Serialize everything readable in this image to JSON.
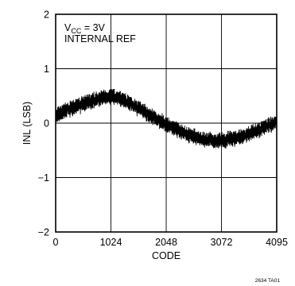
{
  "chart_data": {
    "type": "line",
    "title": "",
    "xlabel": "CODE",
    "ylabel": "INL (LSB)",
    "xlim": [
      0,
      4095
    ],
    "ylim": [
      -2,
      2
    ],
    "x_ticks": [
      0,
      1024,
      2048,
      3072,
      4095
    ],
    "x_tick_labels": [
      "0",
      "1024",
      "2048",
      "3072",
      "4095"
    ],
    "y_ticks": [
      -2,
      -1,
      0,
      1,
      2
    ],
    "y_tick_labels": [
      "−2",
      "−1",
      "0",
      "1",
      "2"
    ],
    "grid": true,
    "annotation": {
      "vcc_prefix": "V",
      "vcc_subscript": "CC",
      "vcc_suffix": " = 3V",
      "ref": "INTERNAL REF"
    },
    "figure_code": "2634 TA01",
    "series": [
      {
        "x": [
          0,
          128,
          256,
          384,
          512,
          640,
          768,
          896,
          1024,
          1152,
          1280,
          1408,
          1536,
          1664,
          1792,
          1920,
          2048,
          2176,
          2304,
          2432,
          2560,
          2688,
          2816,
          2944,
          3072,
          3200,
          3328,
          3456,
          3584,
          3712,
          3840,
          3968,
          4095
        ],
        "y": [
          0.12,
          0.2,
          0.26,
          0.3,
          0.35,
          0.4,
          0.44,
          0.47,
          0.5,
          0.47,
          0.42,
          0.35,
          0.27,
          0.2,
          0.12,
          0.05,
          -0.02,
          -0.09,
          -0.15,
          -0.2,
          -0.25,
          -0.29,
          -0.31,
          -0.33,
          -0.32,
          -0.3,
          -0.28,
          -0.24,
          -0.19,
          -0.14,
          -0.08,
          -0.03,
          0.02
        ],
        "color": "#000000"
      }
    ]
  }
}
